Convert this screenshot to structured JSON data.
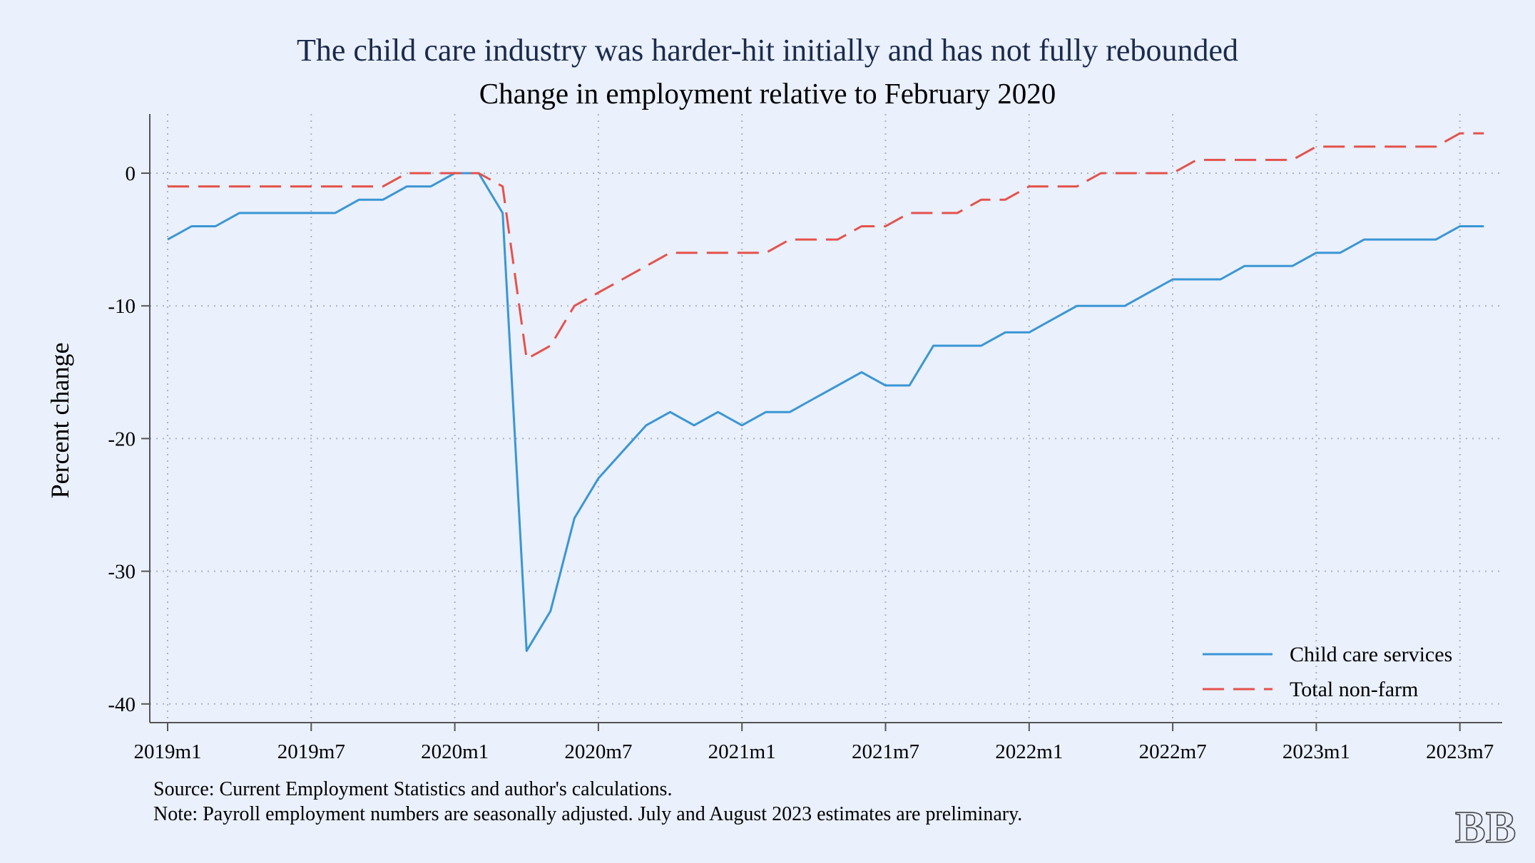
{
  "chart_data": {
    "type": "line",
    "title": "The child care industry was harder-hit initially and has not fully rebounded",
    "subtitle": "Change in employment relative to February 2020",
    "xlabel": "",
    "ylabel": "Percent change",
    "x_ticks": [
      "2019m1",
      "2019m7",
      "2020m1",
      "2020m7",
      "2021m1",
      "2021m7",
      "2022m1",
      "2022m7",
      "2023m1",
      "2023m7"
    ],
    "y_ticks": [
      0,
      -10,
      -20,
      -30,
      -40
    ],
    "ylim": [
      -41.5,
      4.5
    ],
    "xlim": [
      "2018m12",
      "2023m9"
    ],
    "grid": true,
    "legend_position": "bottom-right",
    "x": [
      "2019m1",
      "2019m2",
      "2019m3",
      "2019m4",
      "2019m5",
      "2019m6",
      "2019m7",
      "2019m8",
      "2019m9",
      "2019m10",
      "2019m11",
      "2019m12",
      "2020m1",
      "2020m2",
      "2020m3",
      "2020m4",
      "2020m5",
      "2020m6",
      "2020m7",
      "2020m8",
      "2020m9",
      "2020m10",
      "2020m11",
      "2020m12",
      "2021m1",
      "2021m2",
      "2021m3",
      "2021m4",
      "2021m5",
      "2021m6",
      "2021m7",
      "2021m8",
      "2021m9",
      "2021m10",
      "2021m11",
      "2021m12",
      "2022m1",
      "2022m2",
      "2022m3",
      "2022m4",
      "2022m5",
      "2022m6",
      "2022m7",
      "2022m8",
      "2022m9",
      "2022m10",
      "2022m11",
      "2022m12",
      "2023m1",
      "2023m2",
      "2023m3",
      "2023m4",
      "2023m5",
      "2023m6",
      "2023m7",
      "2023m8"
    ],
    "series": [
      {
        "name": "Child care services",
        "color": "#3a96d4",
        "style": "solid",
        "values": [
          -5,
          -4,
          -4,
          -3,
          -3,
          -3,
          -3,
          -3,
          -2,
          -2,
          -1,
          -1,
          0,
          0,
          -3,
          -36,
          -33,
          -26,
          -23,
          -21,
          -19,
          -18,
          -19,
          -18,
          -19,
          -18,
          -18,
          -17,
          -16,
          -15,
          -16,
          -16,
          -13,
          -13,
          -13,
          -12,
          -12,
          -11,
          -10,
          -10,
          -10,
          -9,
          -8,
          -8,
          -8,
          -7,
          -7,
          -7,
          -6,
          -6,
          -5,
          -5,
          -5,
          -5,
          -4,
          -4
        ]
      },
      {
        "name": "Total non-farm",
        "color": "#e4524b",
        "style": "dashed",
        "values": [
          -1,
          -1,
          -1,
          -1,
          -1,
          -1,
          -1,
          -1,
          -1,
          -1,
          0,
          0,
          0,
          0,
          -1,
          -14,
          -13,
          -10,
          -9,
          -8,
          -7,
          -6,
          -6,
          -6,
          -6,
          -6,
          -5,
          -5,
          -5,
          -4,
          -4,
          -3,
          -3,
          -3,
          -2,
          -2,
          -1,
          -1,
          -1,
          0,
          0,
          0,
          0,
          1,
          1,
          1,
          1,
          1,
          2,
          2,
          2,
          2,
          2,
          2,
          3,
          3
        ]
      }
    ]
  },
  "footer": {
    "source": "Source: Current Employment Statistics and author's calculations.",
    "note": "Note: Payroll employment numbers are seasonally adjusted. July and August 2023 estimates are preliminary."
  },
  "logo": {
    "text": "BB"
  }
}
